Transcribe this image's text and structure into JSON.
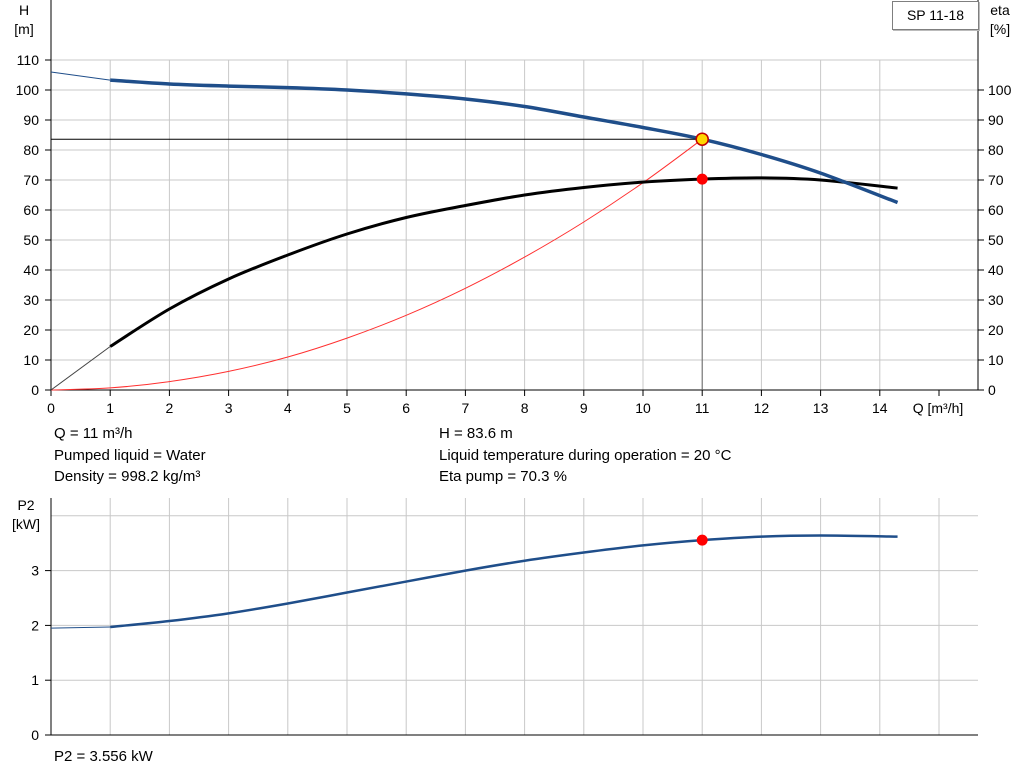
{
  "chart_data": [
    {
      "type": "line",
      "model": "SP 11-18",
      "left_axis": {
        "label_top": "H",
        "label_unit": "[m]",
        "ylim": [
          0,
          110
        ],
        "ticks": [
          "0",
          "10",
          "20",
          "30",
          "40",
          "50",
          "60",
          "70",
          "80",
          "90",
          "100",
          "110"
        ]
      },
      "right_axis": {
        "label_top": "eta",
        "label_unit": "[%]",
        "ylim": [
          0,
          110
        ],
        "ticks": [
          "0",
          "10",
          "20",
          "30",
          "40",
          "50",
          "60",
          "70",
          "80",
          "90",
          "100"
        ]
      },
      "x_axis": {
        "label": "Q [m³/h]",
        "xlim": [
          0,
          15
        ],
        "ticks": [
          "0",
          "1",
          "2",
          "3",
          "4",
          "5",
          "6",
          "7",
          "8",
          "9",
          "10",
          "11",
          "12",
          "13",
          "14"
        ]
      },
      "grid": true,
      "colors": {
        "head": "#1f4e8a",
        "eta": "#000000",
        "system": "#ff3030",
        "point": "#ff0000",
        "duty_fill": "#ffd700"
      },
      "series": [
        {
          "key": "head",
          "x": [
            0,
            1,
            2,
            3,
            4,
            5,
            6,
            7,
            8,
            9,
            10,
            11,
            12,
            13,
            14.3
          ],
          "y": [
            106,
            103.3,
            102,
            101.3,
            100.8,
            100,
            98.7,
            97,
            94.5,
            91,
            87.5,
            83.6,
            78.5,
            72.3,
            62.5
          ]
        },
        {
          "key": "eta",
          "x": [
            1,
            2,
            3,
            4,
            5,
            6,
            7,
            8,
            9,
            10,
            11,
            12,
            13,
            14.3
          ],
          "y": [
            14.5,
            27,
            37,
            45,
            52,
            57.5,
            61.5,
            65,
            67.5,
            69.3,
            70.3,
            70.7,
            70,
            67.3
          ]
        },
        {
          "key": "system",
          "x": [
            0,
            1,
            2,
            3,
            4,
            5,
            6,
            7,
            8,
            9,
            10,
            11
          ],
          "y": [
            0,
            0.7,
            2.8,
            6.2,
            11,
            17.3,
            24.9,
            33.9,
            44.3,
            56,
            69.1,
            83.6
          ]
        }
      ],
      "duty_point": {
        "Q": 11,
        "H": 83.6,
        "eta": 70.3
      }
    },
    {
      "type": "line",
      "left_axis": {
        "label_top": "P2",
        "label_unit": "[kW]",
        "ylim": [
          0,
          4
        ],
        "ticks": [
          "0",
          "1",
          "2",
          "3"
        ]
      },
      "x_axis": {
        "xlim": [
          0,
          15
        ]
      },
      "grid": true,
      "colors": {
        "power": "#1f4e8a",
        "point": "#ff0000"
      },
      "series": [
        {
          "key": "power",
          "x": [
            0,
            1,
            2,
            3,
            4,
            5,
            6,
            7,
            8,
            9,
            10,
            11,
            12,
            13,
            14.3
          ],
          "y": [
            1.95,
            1.97,
            2.08,
            2.22,
            2.4,
            2.6,
            2.8,
            3.0,
            3.18,
            3.33,
            3.46,
            3.556,
            3.62,
            3.64,
            3.62
          ]
        }
      ],
      "duty_point": {
        "Q": 11,
        "P2": 3.556
      }
    }
  ],
  "info": {
    "q": "Q = 11 m³/h",
    "liquid": "Pumped liquid = Water",
    "density": "Density = 998.2 kg/m³",
    "h": "H = 83.6 m",
    "temp": "Liquid temperature during operation = 20 °C",
    "eta": "Eta pump = 70.3 %",
    "p2": "P2 = 3.556 kW"
  }
}
